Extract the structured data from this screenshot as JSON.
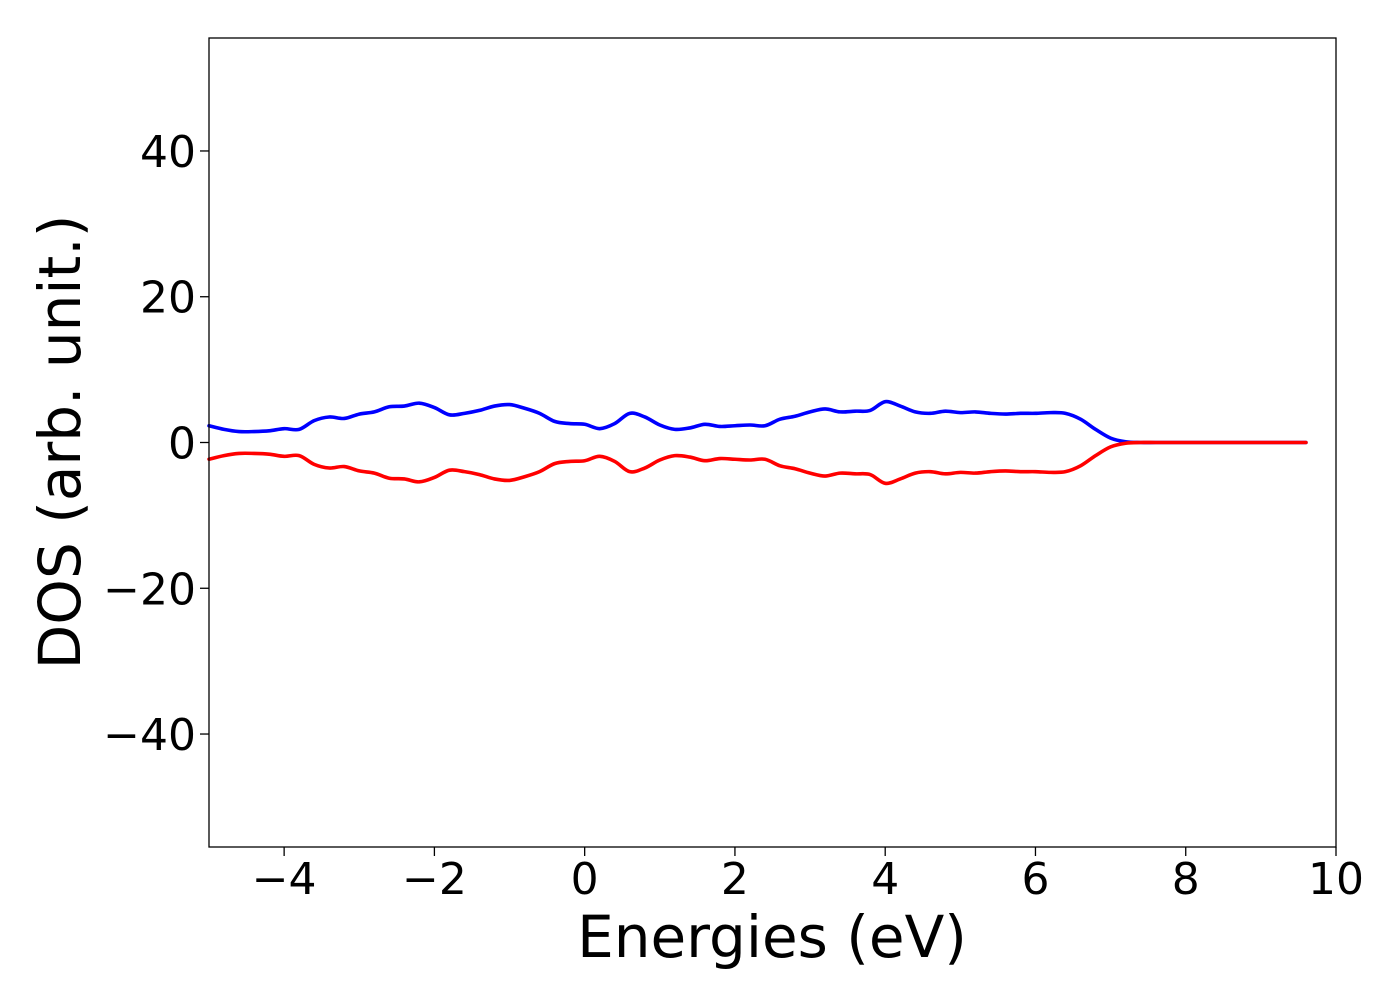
{
  "chart_data": {
    "type": "line",
    "title": "",
    "xlabel": "Energies (eV)",
    "ylabel": "DOS (arb. unit.)",
    "xlim": [
      -5,
      10
    ],
    "ylim": [
      -55.5,
      55.5
    ],
    "xticks": [
      -4,
      -2,
      0,
      2,
      4,
      6,
      8,
      10
    ],
    "xtick_labels": [
      "−4",
      "−2",
      "0",
      "2",
      "4",
      "6",
      "8",
      "10"
    ],
    "yticks": [
      40,
      20,
      0,
      -20,
      -40
    ],
    "ytick_labels": [
      "40",
      "20",
      "0",
      "−20",
      "−40"
    ],
    "grid": false,
    "legend": "none",
    "series": [
      {
        "color": "#0000ff",
        "x": [
          -5.0,
          -4.8,
          -4.6,
          -4.4,
          -4.2,
          -4.0,
          -3.8,
          -3.6,
          -3.4,
          -3.2,
          -3.0,
          -2.8,
          -2.6,
          -2.4,
          -2.2,
          -2.0,
          -1.8,
          -1.6,
          -1.4,
          -1.2,
          -1.0,
          -0.8,
          -0.6,
          -0.4,
          -0.2,
          0.0,
          0.2,
          0.4,
          0.6,
          0.8,
          1.0,
          1.2,
          1.4,
          1.6,
          1.8,
          2.0,
          2.2,
          2.4,
          2.6,
          2.8,
          3.0,
          3.2,
          3.4,
          3.6,
          3.8,
          4.0,
          4.2,
          4.4,
          4.6,
          4.8,
          5.0,
          5.2,
          5.4,
          5.6,
          5.8,
          6.0,
          6.2,
          6.4,
          6.6,
          6.8,
          7.0,
          7.2,
          7.4,
          7.6,
          7.8,
          8.0,
          8.5,
          9.0,
          9.5,
          9.6
        ],
        "y": [
          2.3,
          1.8,
          1.5,
          1.5,
          1.6,
          1.9,
          1.8,
          3.0,
          3.5,
          3.3,
          3.9,
          4.2,
          4.9,
          5.0,
          5.4,
          4.8,
          3.8,
          4.0,
          4.4,
          5.0,
          5.2,
          4.7,
          4.0,
          2.9,
          2.6,
          2.5,
          1.9,
          2.6,
          4.0,
          3.5,
          2.4,
          1.8,
          2.0,
          2.5,
          2.2,
          2.3,
          2.4,
          2.3,
          3.2,
          3.6,
          4.2,
          4.6,
          4.2,
          4.3,
          4.4,
          5.6,
          5.0,
          4.2,
          4.0,
          4.3,
          4.1,
          4.2,
          4.0,
          3.9,
          4.0,
          4.0,
          4.1,
          4.0,
          3.2,
          1.8,
          0.6,
          0.1,
          0.0,
          0.0,
          0.0,
          0.0,
          0.0,
          0.0,
          0.0,
          0.0
        ]
      },
      {
        "color": "#ff0000",
        "x": [
          -5.0,
          -4.8,
          -4.6,
          -4.4,
          -4.2,
          -4.0,
          -3.8,
          -3.6,
          -3.4,
          -3.2,
          -3.0,
          -2.8,
          -2.6,
          -2.4,
          -2.2,
          -2.0,
          -1.8,
          -1.6,
          -1.4,
          -1.2,
          -1.0,
          -0.8,
          -0.6,
          -0.4,
          -0.2,
          0.0,
          0.2,
          0.4,
          0.6,
          0.8,
          1.0,
          1.2,
          1.4,
          1.6,
          1.8,
          2.0,
          2.2,
          2.4,
          2.6,
          2.8,
          3.0,
          3.2,
          3.4,
          3.6,
          3.8,
          4.0,
          4.2,
          4.4,
          4.6,
          4.8,
          5.0,
          5.2,
          5.4,
          5.6,
          5.8,
          6.0,
          6.2,
          6.4,
          6.6,
          6.8,
          7.0,
          7.2,
          7.4,
          7.6,
          7.8,
          8.0,
          8.5,
          9.0,
          9.5,
          9.6
        ],
        "y": [
          -2.3,
          -1.8,
          -1.5,
          -1.5,
          -1.6,
          -1.9,
          -1.8,
          -3.0,
          -3.5,
          -3.3,
          -3.9,
          -4.2,
          -4.9,
          -5.0,
          -5.4,
          -4.8,
          -3.8,
          -4.0,
          -4.4,
          -5.0,
          -5.2,
          -4.7,
          -4.0,
          -2.9,
          -2.6,
          -2.5,
          -1.9,
          -2.6,
          -4.0,
          -3.5,
          -2.4,
          -1.8,
          -2.0,
          -2.5,
          -2.2,
          -2.3,
          -2.4,
          -2.3,
          -3.2,
          -3.6,
          -4.2,
          -4.6,
          -4.2,
          -4.3,
          -4.4,
          -5.6,
          -5.0,
          -4.2,
          -4.0,
          -4.3,
          -4.1,
          -4.2,
          -4.0,
          -3.9,
          -4.0,
          -4.0,
          -4.1,
          -4.0,
          -3.2,
          -1.8,
          -0.6,
          -0.1,
          0.0,
          0.0,
          0.0,
          0.0,
          0.0,
          0.0,
          0.0,
          0.0
        ]
      }
    ]
  }
}
